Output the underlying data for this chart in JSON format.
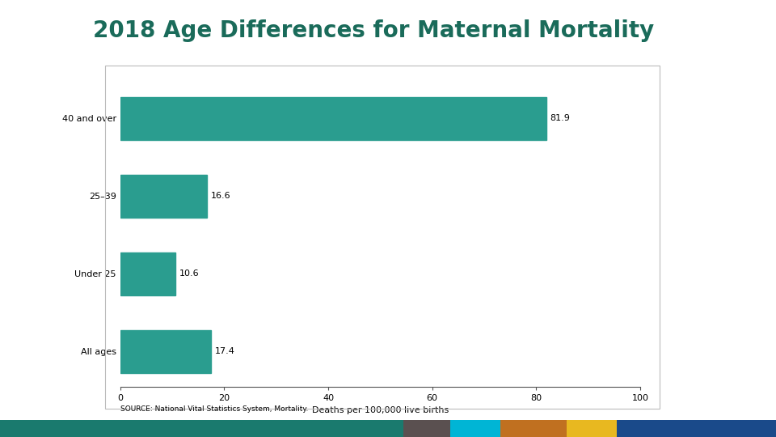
{
  "title": "2018 Age Differences for Maternal Mortality",
  "title_color": "#1a6b5a",
  "title_fontsize": 20,
  "title_fontweight": "bold",
  "categories": [
    "All ages",
    "Under 25",
    "25–39",
    "40 and over"
  ],
  "values": [
    17.4,
    10.6,
    16.6,
    81.9
  ],
  "bar_color": "#2a9d8f",
  "xlabel": "Deaths per 100,000 live births",
  "xlim": [
    0,
    100
  ],
  "xticks": [
    0,
    20,
    40,
    60,
    80,
    100
  ],
  "source_text": "SOURCE: National Vital Statistics System, Mortality.",
  "background_color": "#ffffff",
  "chart_bg": "#ffffff",
  "border_color": "#bbbbbb",
  "label_fontsize": 8,
  "value_fontsize": 8,
  "xlabel_fontsize": 8,
  "source_fontsize": 6.5,
  "bottom_bar_colors": [
    "#1a7a6e",
    "#1a7a6e",
    "#1a7a6e",
    "#1a7a6e",
    "#1a7a6e",
    "#5a5a5a",
    "#00b0d8",
    "#c07020",
    "#e8b820",
    "#1a5a9a"
  ],
  "bottom_bar_widths": [
    0.52,
    0.52,
    0.52,
    0.52,
    0.52,
    0.06,
    0.06,
    0.08,
    0.06,
    0.06
  ]
}
